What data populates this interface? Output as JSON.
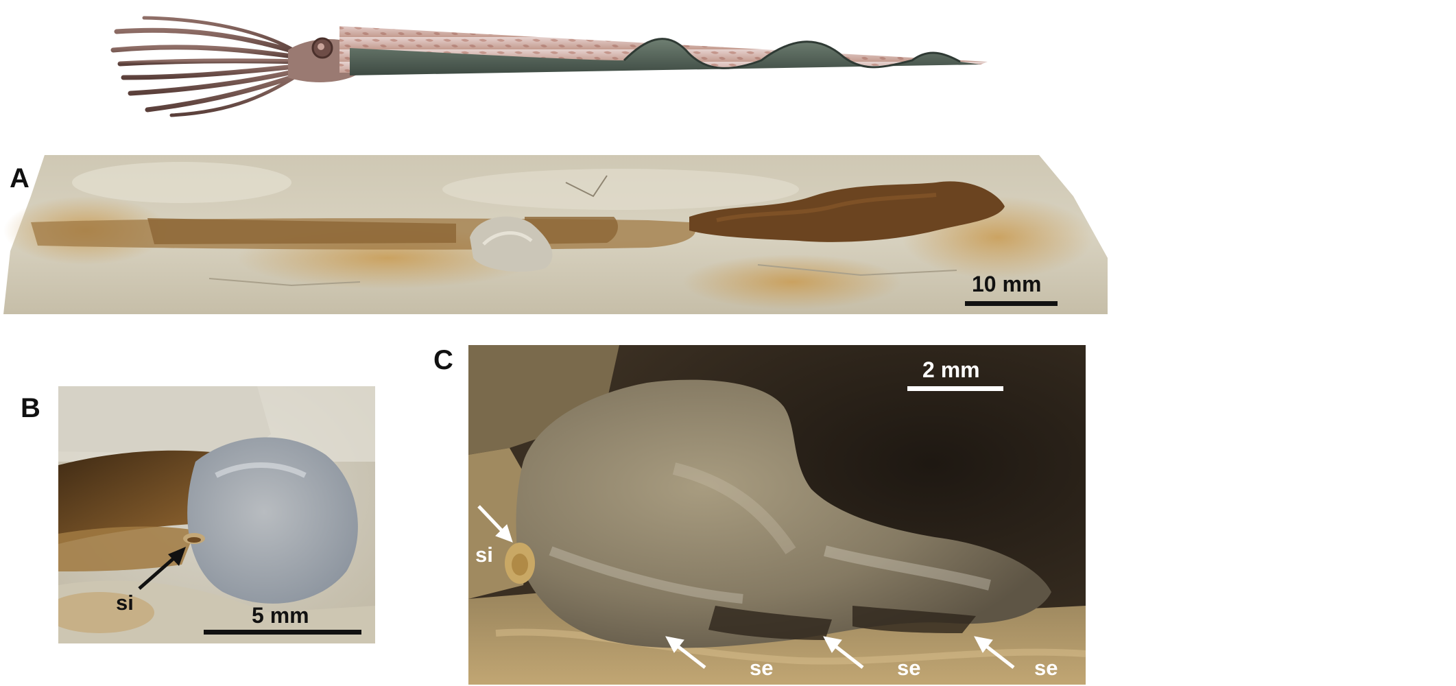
{
  "figure": {
    "panel_a": {
      "letter": "A",
      "scale_label": "10 mm"
    },
    "panel_b": {
      "letter": "B",
      "scale_label": "5 mm",
      "label_si": "si"
    },
    "panel_c": {
      "letter": "C",
      "scale_label": "2 mm",
      "label_si": "si",
      "label_se_1": "se",
      "label_se_2": "se",
      "label_se_3": "se"
    }
  },
  "colors": {
    "label_dark": "#111111",
    "label_light": "#ffffff",
    "rock_light": "#d9d2bd",
    "rock_ochre": "#c9a25e",
    "fossil_brown": "#6b4420",
    "dark_background": "#2a2118"
  }
}
